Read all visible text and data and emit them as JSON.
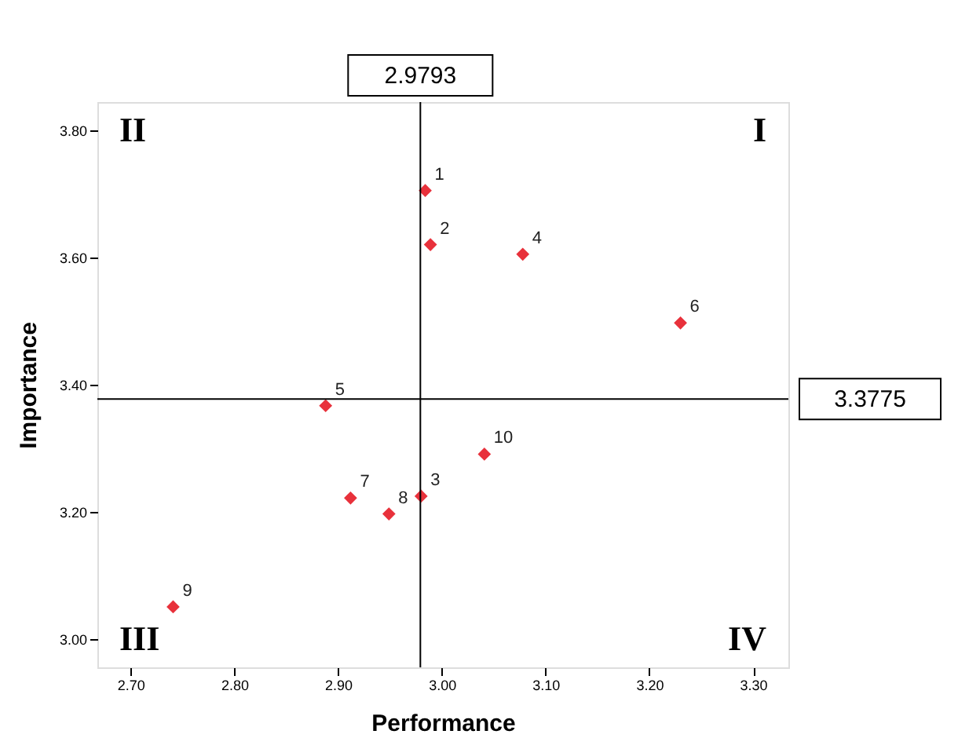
{
  "chart_data": {
    "type": "scatter",
    "xlabel": "Performance",
    "ylabel": "Importance",
    "x": [
      2.984,
      2.989,
      2.98,
      3.078,
      2.888,
      3.23,
      2.912,
      2.949,
      2.741,
      3.041
    ],
    "series": [
      {
        "color": "#e8313b",
        "values": [
          3.705,
          3.62,
          3.225,
          3.605,
          3.367,
          3.497,
          3.222,
          3.197,
          3.051,
          3.291
        ]
      }
    ],
    "xlim": [
      2.668,
      3.334
    ],
    "xticks": [
      {
        "value": 2.7,
        "label": "2.70"
      },
      {
        "value": 2.8,
        "label": "2.80"
      },
      {
        "value": 2.9,
        "label": "2.90"
      },
      {
        "value": 3.0,
        "label": "3.00"
      },
      {
        "value": 3.1,
        "label": "3.10"
      },
      {
        "value": 3.2,
        "label": "3.20"
      },
      {
        "value": 3.3,
        "label": "3.30"
      }
    ],
    "ylim": [
      2.956,
      3.844
    ],
    "yticks": [
      {
        "value": 3.0,
        "label": "3.00"
      },
      {
        "value": 3.2,
        "label": "3.20"
      },
      {
        "value": 3.4,
        "label": "3.40"
      },
      {
        "value": 3.6,
        "label": "3.60"
      },
      {
        "value": 3.8,
        "label": "3.80"
      }
    ],
    "ref_lines": [
      {
        "axis": "x",
        "value": 2.9793,
        "label": "2.9793",
        "color": "#000000"
      },
      {
        "axis": "y",
        "value": 3.3775,
        "label": "3.3775",
        "color": "#000000"
      }
    ],
    "annotations": [
      "II",
      "I",
      "III",
      "IV",
      {
        "text": "1",
        "x": 2.984,
        "y": 3.705
      },
      {
        "text": "2",
        "x": 2.989,
        "y": 3.62
      },
      {
        "text": "3",
        "x": 2.98,
        "y": 3.225
      },
      {
        "text": "4",
        "x": 3.078,
        "y": 3.605
      },
      {
        "text": "5",
        "x": 2.888,
        "y": 3.367
      },
      {
        "text": "6",
        "x": 3.23,
        "y": 3.497
      },
      {
        "text": "7",
        "x": 2.912,
        "y": 3.222
      },
      {
        "text": "8",
        "x": 2.949,
        "y": 3.197
      },
      {
        "text": "9",
        "x": 2.741,
        "y": 3.051
      },
      {
        "text": "10",
        "x": 3.041,
        "y": 3.291
      }
    ],
    "marker": "diamond",
    "grid": false
  }
}
